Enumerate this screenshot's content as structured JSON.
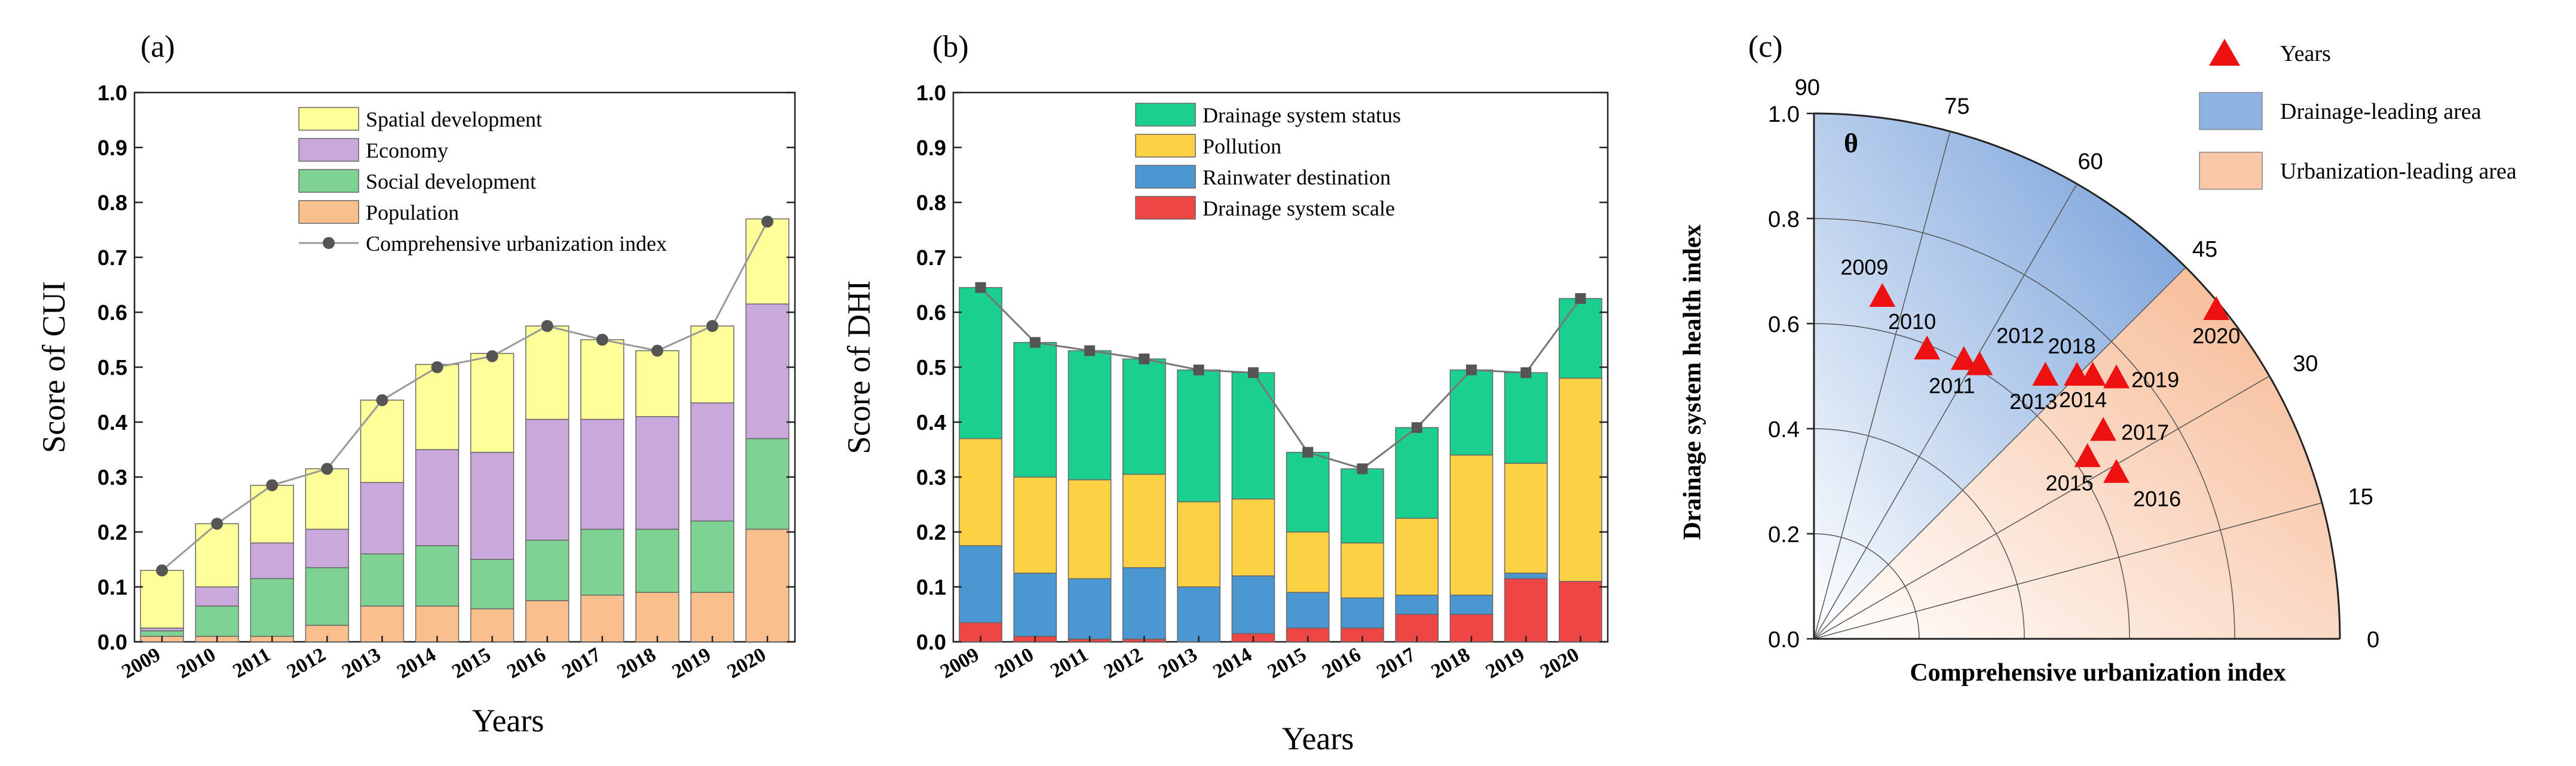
{
  "chart_data": [
    {
      "panel_label": "(a)",
      "type": "stacked_bar_line",
      "categories": [
        "2009",
        "2010",
        "2011",
        "2012",
        "2013",
        "2014",
        "2015",
        "2016",
        "2017",
        "2018",
        "2019",
        "2020"
      ],
      "series": [
        {
          "name": "Population",
          "color": "#f9c08e",
          "values": [
            0.01,
            0.01,
            0.01,
            0.03,
            0.065,
            0.065,
            0.06,
            0.075,
            0.085,
            0.09,
            0.09,
            0.205
          ]
        },
        {
          "name": "Social  development",
          "color": "#7ed394",
          "values": [
            0.01,
            0.055,
            0.105,
            0.105,
            0.095,
            0.11,
            0.09,
            0.11,
            0.12,
            0.115,
            0.13,
            0.165
          ]
        },
        {
          "name": "Economy",
          "color": "#c9a8dc",
          "values": [
            0.005,
            0.035,
            0.065,
            0.07,
            0.13,
            0.175,
            0.195,
            0.22,
            0.2,
            0.205,
            0.215,
            0.245
          ]
        },
        {
          "name": "Spatial development",
          "color": "#ffff99",
          "values": [
            0.105,
            0.115,
            0.105,
            0.11,
            0.15,
            0.155,
            0.18,
            0.17,
            0.145,
            0.12,
            0.14,
            0.155
          ]
        }
      ],
      "line": {
        "name": "Comprehensive urbanization index",
        "color": "#999999",
        "marker_color": "#555555",
        "values": [
          0.13,
          0.215,
          0.285,
          0.315,
          0.44,
          0.5,
          0.52,
          0.575,
          0.55,
          0.53,
          0.575,
          0.765
        ]
      },
      "legend_order": [
        "Spatial development",
        "Economy",
        "Social  development",
        "Population",
        "Comprehensive urbanization index"
      ],
      "title": "",
      "xlabel": "Years",
      "ylabel": "Score of CUI",
      "ylim": [
        0,
        1.0
      ],
      "yticks": [
        "0.0",
        "0.1",
        "0.2",
        "0.3",
        "0.4",
        "0.5",
        "0.6",
        "0.7",
        "0.8",
        "0.9",
        "1.0"
      ]
    },
    {
      "panel_label": "(b)",
      "type": "stacked_bar_line",
      "categories": [
        "2009",
        "2010",
        "2011",
        "2012",
        "2013",
        "2014",
        "2015",
        "2016",
        "2017",
        "2018",
        "2019",
        "2020"
      ],
      "series": [
        {
          "name": "Drainage system scale",
          "color": "#f04545",
          "values": [
            0.035,
            0.01,
            0.005,
            0.005,
            0.0,
            0.015,
            0.025,
            0.025,
            0.05,
            0.05,
            0.115,
            0.11
          ]
        },
        {
          "name": "Rainwater destination",
          "color": "#4a97d1",
          "values": [
            0.14,
            0.115,
            0.11,
            0.13,
            0.1,
            0.105,
            0.065,
            0.055,
            0.035,
            0.035,
            0.01,
            0.0
          ]
        },
        {
          "name": "Pollution",
          "color": "#fdd144",
          "values": [
            0.195,
            0.175,
            0.18,
            0.17,
            0.155,
            0.14,
            0.11,
            0.1,
            0.14,
            0.255,
            0.2,
            0.37
          ]
        },
        {
          "name": "Drainage system status",
          "color": "#1bcf8f",
          "values": [
            0.275,
            0.245,
            0.235,
            0.21,
            0.24,
            0.23,
            0.145,
            0.135,
            0.165,
            0.155,
            0.165,
            0.145
          ]
        }
      ],
      "line": {
        "name": "",
        "color": "#777777",
        "marker_color": "#555555",
        "values": [
          0.645,
          0.545,
          0.53,
          0.515,
          0.495,
          0.49,
          0.345,
          0.315,
          0.39,
          0.495,
          0.49,
          0.625
        ]
      },
      "legend_order": [
        "Drainage system status",
        "Pollution",
        "Rainwater destination",
        "Drainage system scale"
      ],
      "title": "",
      "xlabel": "Years",
      "ylabel": "Score of DHI",
      "ylim": [
        0,
        1.0
      ],
      "yticks": [
        "0.0",
        "0.1",
        "0.2",
        "0.3",
        "0.4",
        "0.5",
        "0.6",
        "0.7",
        "0.8",
        "0.9",
        "1.0"
      ]
    },
    {
      "panel_label": "(c)",
      "type": "polar_scatter",
      "xlabel": "Comprehensive urbanization index",
      "ylabel": "Drainage system health index",
      "theta_symbol": "θ",
      "xlim": [
        0,
        1.0
      ],
      "ylim": [
        0,
        1.0
      ],
      "radial_ticks": [
        "0.0",
        "0.2",
        "0.4",
        "0.6",
        "0.8",
        "1.0"
      ],
      "angle_ticks": [
        "0",
        "15",
        "30",
        "45",
        "60",
        "75",
        "90"
      ],
      "regions": [
        {
          "name": "Drainage-leading  area",
          "color": "#8fb3e3",
          "angle_range_deg": [
            45,
            90
          ]
        },
        {
          "name": "Urbanization-leading  area",
          "color": "#f9c8a8",
          "angle_range_deg": [
            0,
            45
          ]
        }
      ],
      "marker_legend": "Years",
      "marker_color": "#ee1111",
      "points": [
        {
          "label": "2009",
          "x": 0.13,
          "y": 0.65
        },
        {
          "label": "2010",
          "x": 0.215,
          "y": 0.55
        },
        {
          "label": "2011",
          "x": 0.285,
          "y": 0.53
        },
        {
          "label": "2012",
          "x": 0.315,
          "y": 0.52
        },
        {
          "label": "2013",
          "x": 0.44,
          "y": 0.5
        },
        {
          "label": "2014",
          "x": 0.5,
          "y": 0.5
        },
        {
          "label": "2015",
          "x": 0.52,
          "y": 0.345
        },
        {
          "label": "2016",
          "x": 0.575,
          "y": 0.315
        },
        {
          "label": "2017",
          "x": 0.55,
          "y": 0.395
        },
        {
          "label": "2018",
          "x": 0.53,
          "y": 0.5
        },
        {
          "label": "2019",
          "x": 0.575,
          "y": 0.495
        },
        {
          "label": "2020",
          "x": 0.765,
          "y": 0.625
        }
      ]
    }
  ]
}
